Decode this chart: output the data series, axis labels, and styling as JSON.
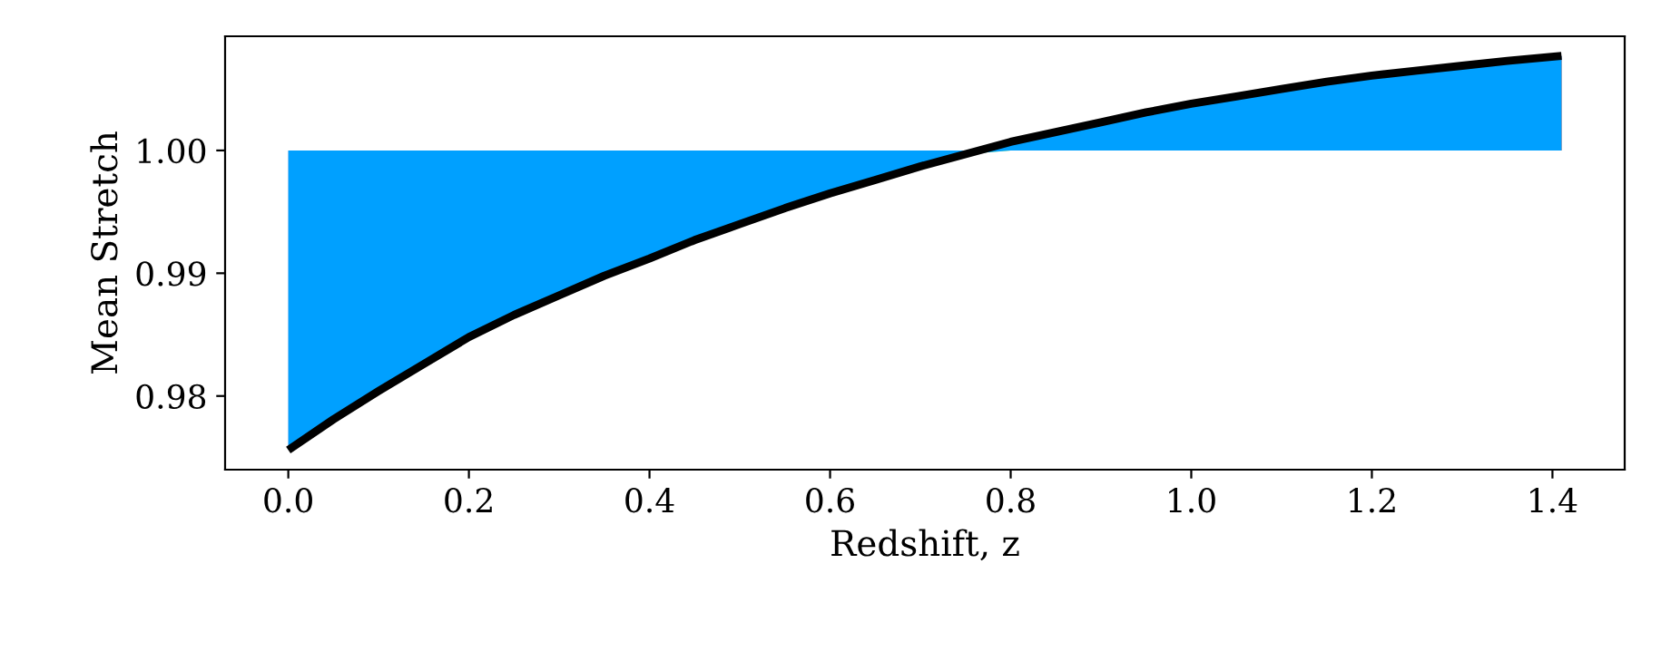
{
  "chart_data": {
    "type": "line",
    "xlabel": "Redshift, z",
    "ylabel": "Mean Stretch",
    "x": [
      0,
      0.05,
      0.1,
      0.15,
      0.2,
      0.25,
      0.3,
      0.35,
      0.4,
      0.45,
      0.5,
      0.55,
      0.6,
      0.65,
      0.7,
      0.75,
      0.8,
      0.85,
      0.9,
      0.95,
      1.0,
      1.05,
      1.1,
      1.15,
      1.2,
      1.25,
      1.3,
      1.35,
      1.41
    ],
    "series": [
      {
        "color": "#000000",
        "values": [
          0.9756,
          0.9781,
          0.9804,
          0.9826,
          0.9848,
          0.9866,
          0.9882,
          0.9898,
          0.9912,
          0.9927,
          0.994,
          0.9953,
          0.9965,
          0.9976,
          0.9987,
          0.9997,
          1.0007,
          1.0015,
          1.0023,
          1.0031,
          1.0038,
          1.0044,
          1.005,
          1.0056,
          1.0061,
          1.0065,
          1.0069,
          1.0073,
          1.0077
        ],
        "lower": [
          0.9756,
          0.9781,
          0.9804,
          0.9826,
          0.9848,
          0.9866,
          0.9882,
          0.9898,
          0.9912,
          0.9927,
          0.994,
          0.9953,
          0.9965,
          0.9976,
          0.9987,
          0.9997,
          1.0,
          1.0,
          1.0,
          1.0,
          1.0,
          1.0,
          1.0,
          1.0,
          1.0,
          1.0,
          1.0,
          1.0,
          1.0
        ],
        "upper": [
          1.0,
          1.0,
          1.0,
          1.0,
          1.0,
          1.0,
          1.0,
          1.0,
          1.0,
          1.0,
          1.0,
          1.0,
          1.0,
          1.0,
          1.0,
          1.0,
          1.0007,
          1.0015,
          1.0023,
          1.0031,
          1.0038,
          1.0044,
          1.005,
          1.0056,
          1.0061,
          1.0065,
          1.0069,
          1.0073,
          1.0077
        ]
      }
    ],
    "xlim": [
      -0.07,
      1.48
    ],
    "ylim": [
      0.974,
      1.0093
    ],
    "xticks": [
      {
        "value": 0,
        "label": "0.0"
      },
      0.2,
      0.4,
      0.6,
      0.8,
      {
        "value": 1,
        "label": "1.0"
      },
      1.2,
      1.4
    ],
    "yticks": [
      0.98,
      0.99,
      {
        "value": 1,
        "label": "1.00"
      }
    ],
    "grid": false,
    "marker": "none",
    "line_style": "solid"
  }
}
